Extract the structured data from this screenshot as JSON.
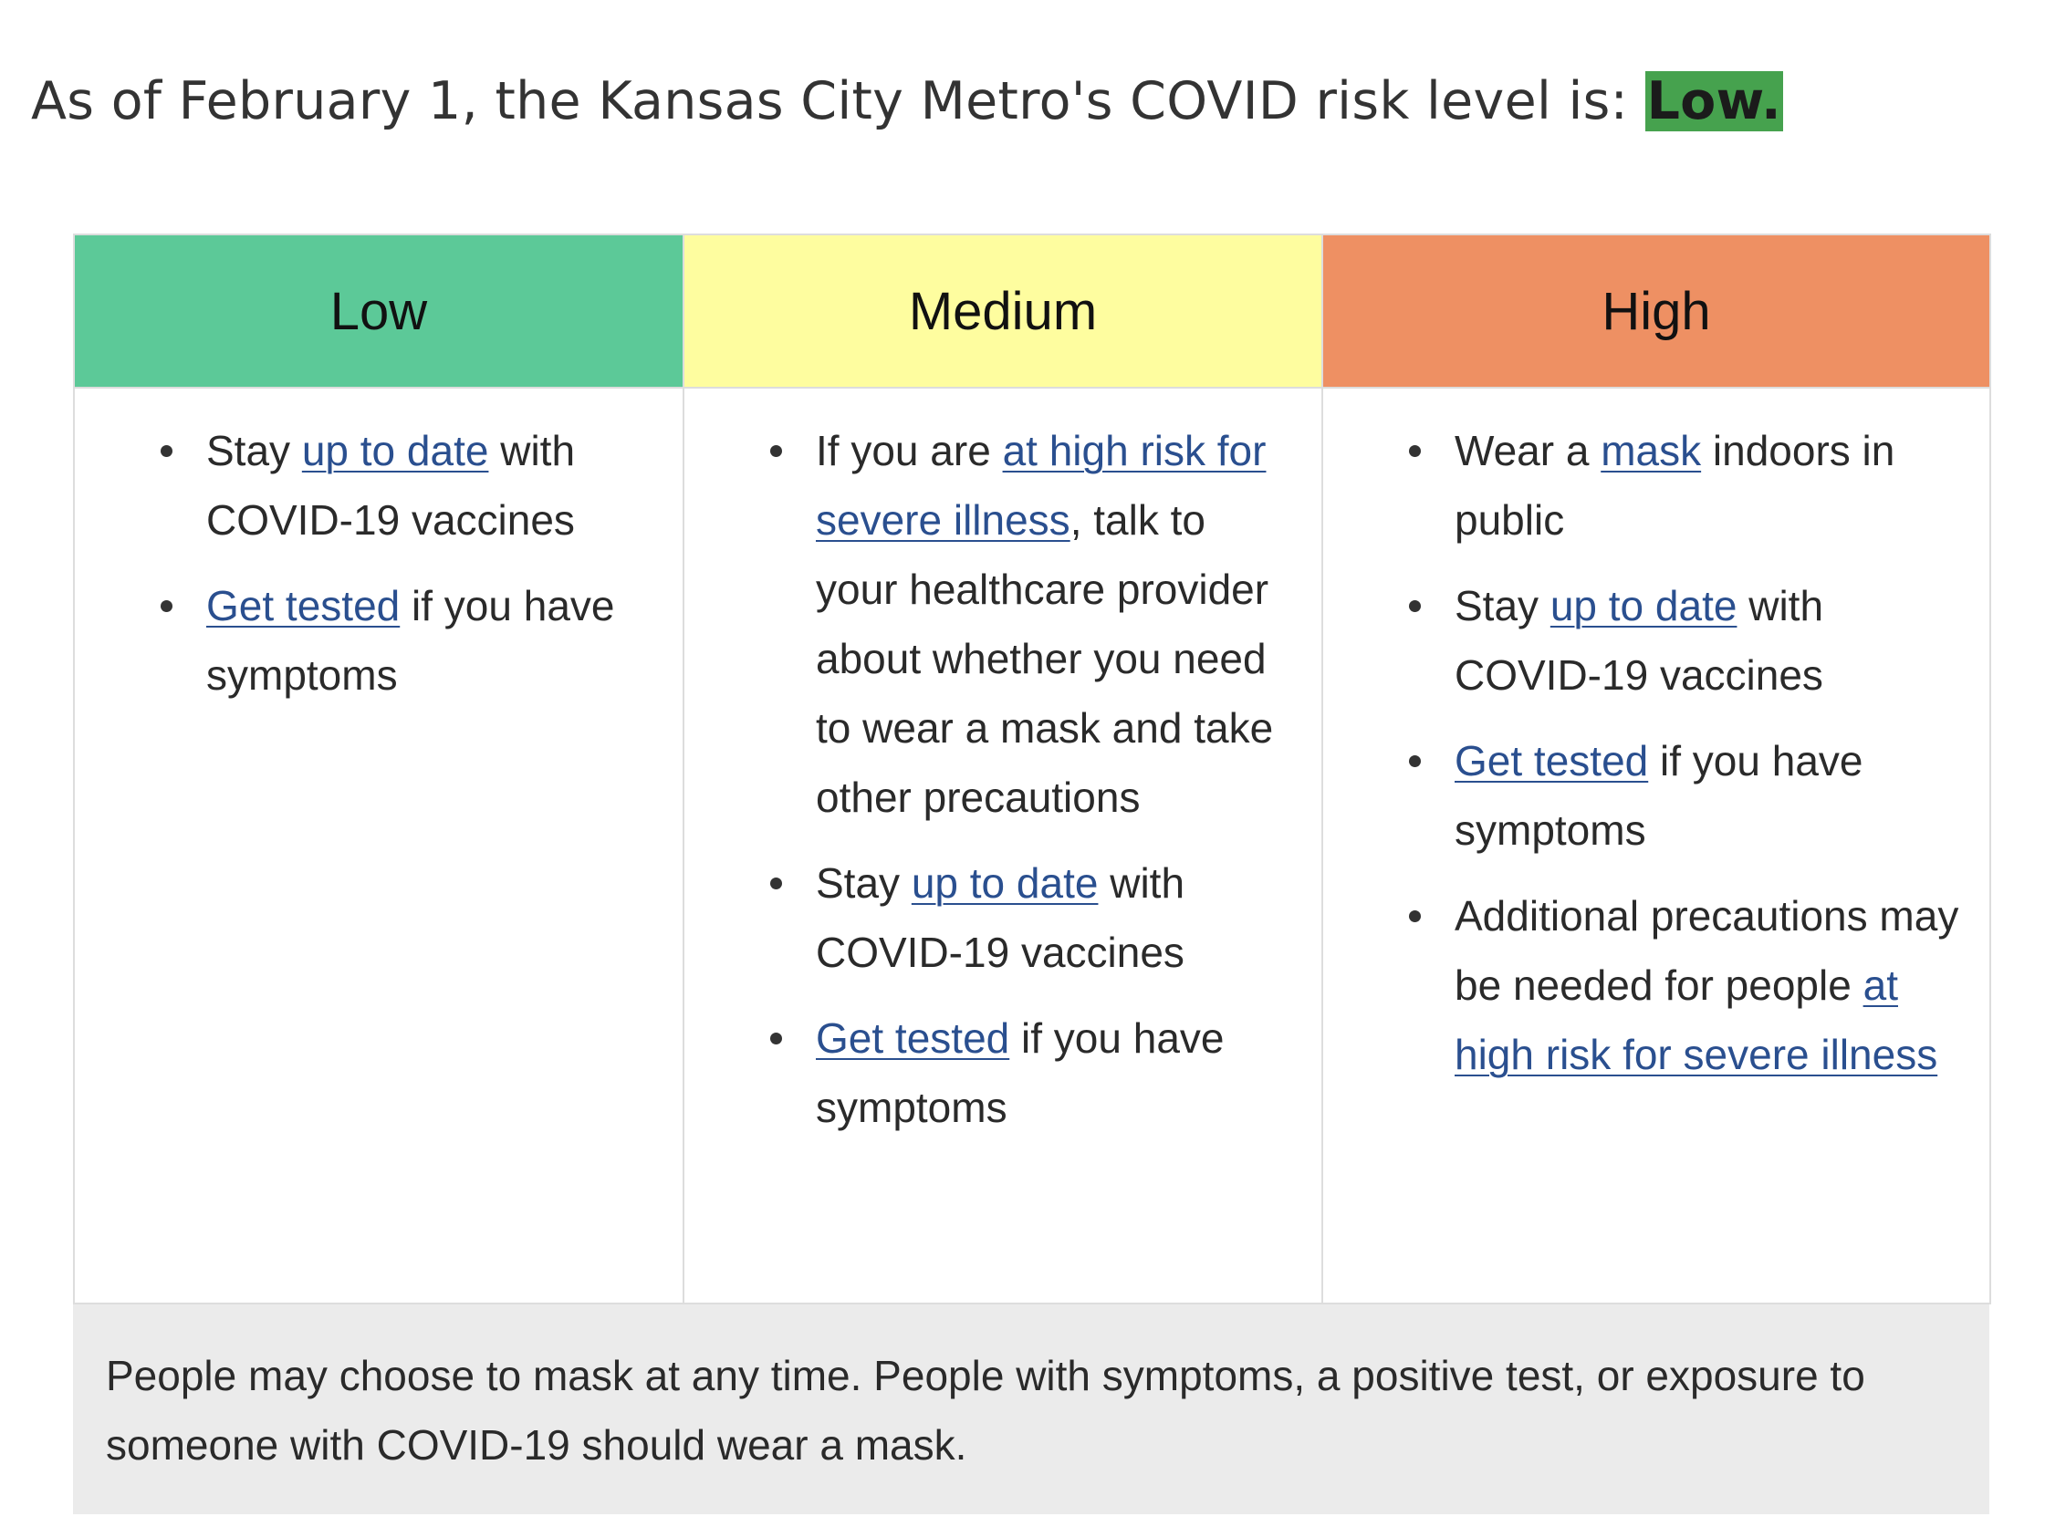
{
  "headline": {
    "prefix": "As of February 1, the Kansas City Metro's COVID risk level is: ",
    "level": "Low.",
    "level_color": "#46a24e"
  },
  "levels": [
    {
      "name": "Low",
      "color": "#5cc998",
      "items": [
        {
          "before": "Stay ",
          "link": "up to date",
          "after": " with COVID-19 vaccines"
        },
        {
          "before": "",
          "link": "Get tested",
          "after": " if you have symptoms"
        }
      ]
    },
    {
      "name": "Medium",
      "color": "#fefd9f",
      "items": [
        {
          "before": "If you are ",
          "link": "at high risk for severe illness",
          "after": ", talk to your healthcare provider about whether you need to wear a mask and take other precautions"
        },
        {
          "before": "Stay ",
          "link": "up to date",
          "after": " with COVID-19 vaccines"
        },
        {
          "before": "",
          "link": "Get tested",
          "after": " if you have symptoms"
        }
      ]
    },
    {
      "name": "High",
      "color": "#ee9063",
      "items": [
        {
          "before": "Wear a ",
          "link": "mask",
          "after": " indoors in public"
        },
        {
          "before": "Stay ",
          "link": "up to date",
          "after": " with COVID-19 vaccines"
        },
        {
          "before": "",
          "link": "Get tested",
          "after": " if you have symptoms"
        },
        {
          "before": "Additional precautions may be needed for people ",
          "link": "at high risk for severe illness",
          "after": ""
        }
      ]
    }
  ],
  "footer_note": "People may choose to mask at any time. People with symptoms, a positive test, or exposure to someone with COVID-19 should wear a mask.",
  "colors": {
    "link": "#2a4f8f",
    "footer_bg": "#ebebeb"
  }
}
